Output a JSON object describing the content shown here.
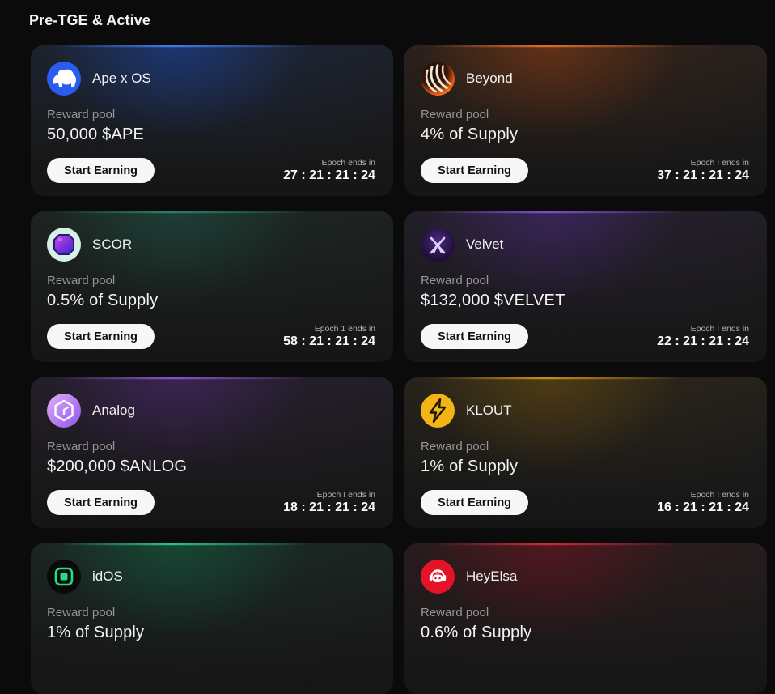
{
  "page": {
    "title": "Pre-TGE & Active",
    "background_color": "#0b0b0b",
    "card_background_color": "#1a1a1a",
    "button_background_color": "#f7f7f7"
  },
  "cards": [
    {
      "name": "Ape x OS",
      "icon": "gorilla-icon",
      "accent": "#1e56d6",
      "topline": "#4b8bff",
      "reward_pool_label": "Reward pool",
      "reward_pool_value": "50,000 $APE",
      "button_label": "Start Earning",
      "epoch_label": "Epoch ends in",
      "epoch_timer": "27 : 21 : 21 : 24"
    },
    {
      "name": "Beyond",
      "icon": "striped-sphere-icon",
      "accent": "#b4480e",
      "topline": "#ff7d35",
      "reward_pool_label": "Reward pool",
      "reward_pool_value": "4% of Supply",
      "button_label": "Start Earning",
      "epoch_label": "Epoch I ends in",
      "epoch_timer": "37 : 21 : 21 : 24"
    },
    {
      "name": "SCOR",
      "icon": "pixel-gem-icon",
      "accent": "#1d6653",
      "topline": "#2f8f75",
      "reward_pool_label": "Reward pool",
      "reward_pool_value": "0.5% of Supply",
      "button_label": "Start Earning",
      "epoch_label": "Epoch 1 ends in",
      "epoch_timer": "58 : 21 : 21 : 24"
    },
    {
      "name": "Velvet",
      "icon": "velvet-monogram-icon",
      "accent": "#5b2d9e",
      "topline": "#8d5bdf",
      "reward_pool_label": "Reward pool",
      "reward_pool_value": "$132,000 $VELVET",
      "button_label": "Start Earning",
      "epoch_label": "Epoch I ends in",
      "epoch_timer": "22 : 21 : 21 : 24"
    },
    {
      "name": "Analog",
      "icon": "hexagon-icon",
      "accent": "#5f2c93",
      "topline": "#9a63e0",
      "reward_pool_label": "Reward pool",
      "reward_pool_value": "$200,000 $ANLOG",
      "button_label": "Start Earning",
      "epoch_label": "Epoch I ends in",
      "epoch_timer": "18 : 21 : 21 : 24"
    },
    {
      "name": "KLOUT",
      "icon": "lightning-bolt-icon",
      "accent": "#8a5f0a",
      "topline": "#e9a21a",
      "reward_pool_label": "Reward pool",
      "reward_pool_value": "1% of Supply",
      "button_label": "Start Earning",
      "epoch_label": "Epoch I ends in",
      "epoch_timer": "16 : 21 : 21 : 24"
    },
    {
      "name": "idOS",
      "icon": "green-square-icon",
      "accent": "#0f7a52",
      "topline": "#35e39a",
      "reward_pool_label": "Reward pool",
      "reward_pool_value": "1% of Supply",
      "button_label": null,
      "epoch_label": null,
      "epoch_timer": null
    },
    {
      "name": "HeyElsa",
      "icon": "robot-face-icon",
      "accent": "#8f1220",
      "topline": "#e8303f",
      "reward_pool_label": "Reward pool",
      "reward_pool_value": "0.6% of Supply",
      "button_label": null,
      "epoch_label": null,
      "epoch_timer": null
    }
  ]
}
